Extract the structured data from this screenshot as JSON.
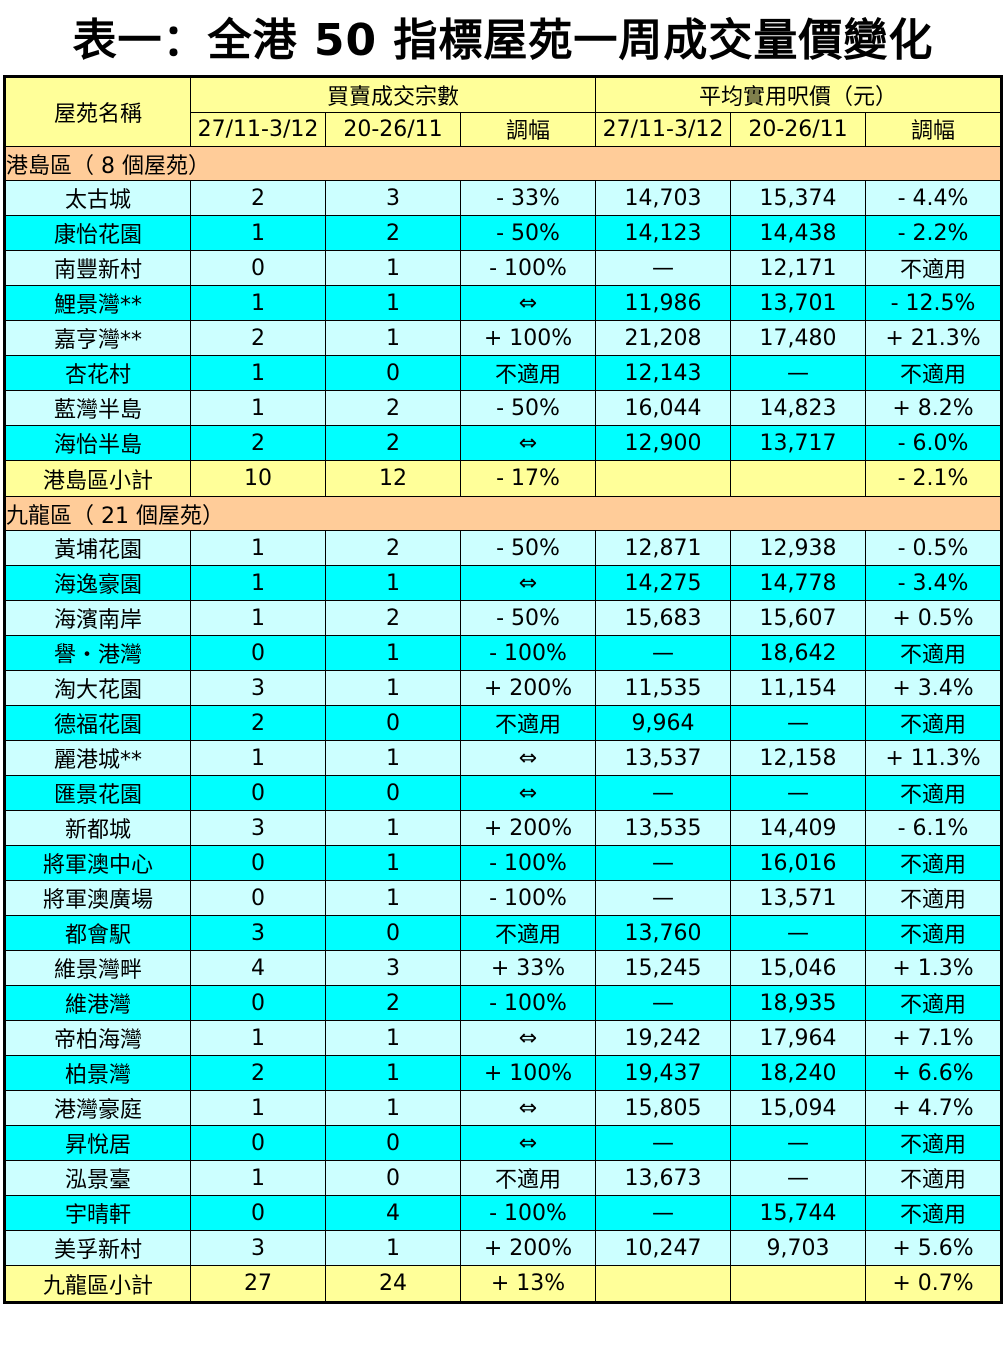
{
  "title": "表一：全港 50 指標屋苑一周成交量價變化",
  "header": {
    "name_col": "屋苑名稱",
    "group_volume": "買賣成交宗數",
    "group_price": "平均實用呎價（元）",
    "sub": [
      "27/11-3/12",
      "20-26/11",
      "調幅",
      "27/11-3/12",
      "20-26/11",
      "調幅"
    ]
  },
  "sections": [
    {
      "region": "港島區（ 8 個屋苑）",
      "rows": [
        {
          "name": "太古城",
          "v1": "2",
          "v2": "3",
          "vc": "- 33%",
          "p1": "14,703",
          "p2": "15,374",
          "pc": "- 4.4%"
        },
        {
          "name": "康怡花園",
          "v1": "1",
          "v2": "2",
          "vc": "- 50%",
          "p1": "14,123",
          "p2": "14,438",
          "pc": "- 2.2%"
        },
        {
          "name": "南豐新村",
          "v1": "0",
          "v2": "1",
          "vc": "- 100%",
          "p1": "—",
          "p2": "12,171",
          "pc": "不適用"
        },
        {
          "name": "鯉景灣**",
          "v1": "1",
          "v2": "1",
          "vc": "⇔",
          "p1": "11,986",
          "p2": "13,701",
          "pc": "- 12.5%"
        },
        {
          "name": "嘉亨灣**",
          "v1": "2",
          "v2": "1",
          "vc": "+ 100%",
          "p1": "21,208",
          "p2": "17,480",
          "pc": "+ 21.3%"
        },
        {
          "name": "杏花村",
          "v1": "1",
          "v2": "0",
          "vc": "不適用",
          "p1": "12,143",
          "p2": "—",
          "pc": "不適用"
        },
        {
          "name": "藍灣半島",
          "v1": "1",
          "v2": "2",
          "vc": "- 50%",
          "p1": "16,044",
          "p2": "14,823",
          "pc": "+ 8.2%"
        },
        {
          "name": "海怡半島",
          "v1": "2",
          "v2": "2",
          "vc": "⇔",
          "p1": "12,900",
          "p2": "13,717",
          "pc": "- 6.0%"
        }
      ],
      "subtotal": {
        "name": "港島區小計",
        "v1": "10",
        "v2": "12",
        "vc": "- 17%",
        "p1": "",
        "p2": "",
        "pc": "- 2.1%"
      }
    },
    {
      "region": "九龍區（ 21 個屋苑）",
      "rows": [
        {
          "name": "黃埔花園",
          "v1": "1",
          "v2": "2",
          "vc": "- 50%",
          "p1": "12,871",
          "p2": "12,938",
          "pc": "- 0.5%"
        },
        {
          "name": "海逸豪園",
          "v1": "1",
          "v2": "1",
          "vc": "⇔",
          "p1": "14,275",
          "p2": "14,778",
          "pc": "- 3.4%"
        },
        {
          "name": "海濱南岸",
          "v1": "1",
          "v2": "2",
          "vc": "- 50%",
          "p1": "15,683",
          "p2": "15,607",
          "pc": "+ 0.5%"
        },
        {
          "name": "譽・港灣",
          "v1": "0",
          "v2": "1",
          "vc": "- 100%",
          "p1": "—",
          "p2": "18,642",
          "pc": "不適用"
        },
        {
          "name": "淘大花園",
          "v1": "3",
          "v2": "1",
          "vc": "+ 200%",
          "p1": "11,535",
          "p2": "11,154",
          "pc": "+ 3.4%"
        },
        {
          "name": "德福花園",
          "v1": "2",
          "v2": "0",
          "vc": "不適用",
          "p1": "9,964",
          "p2": "—",
          "pc": "不適用"
        },
        {
          "name": "麗港城**",
          "v1": "1",
          "v2": "1",
          "vc": "⇔",
          "p1": "13,537",
          "p2": "12,158",
          "pc": "+ 11.3%"
        },
        {
          "name": "匯景花園",
          "v1": "0",
          "v2": "0",
          "vc": "⇔",
          "p1": "—",
          "p2": "—",
          "pc": "不適用"
        },
        {
          "name": "新都城",
          "v1": "3",
          "v2": "1",
          "vc": "+ 200%",
          "p1": "13,535",
          "p2": "14,409",
          "pc": "- 6.1%"
        },
        {
          "name": "將軍澳中心",
          "v1": "0",
          "v2": "1",
          "vc": "- 100%",
          "p1": "—",
          "p2": "16,016",
          "pc": "不適用"
        },
        {
          "name": "將軍澳廣場",
          "v1": "0",
          "v2": "1",
          "vc": "- 100%",
          "p1": "—",
          "p2": "13,571",
          "pc": "不適用"
        },
        {
          "name": "都會駅",
          "v1": "3",
          "v2": "0",
          "vc": "不適用",
          "p1": "13,760",
          "p2": "—",
          "pc": "不適用"
        },
        {
          "name": "維景灣畔",
          "v1": "4",
          "v2": "3",
          "vc": "+ 33%",
          "p1": "15,245",
          "p2": "15,046",
          "pc": "+ 1.3%"
        },
        {
          "name": "維港灣",
          "v1": "0",
          "v2": "2",
          "vc": "- 100%",
          "p1": "—",
          "p2": "18,935",
          "pc": "不適用"
        },
        {
          "name": "帝柏海灣",
          "v1": "1",
          "v2": "1",
          "vc": "⇔",
          "p1": "19,242",
          "p2": "17,964",
          "pc": "+ 7.1%"
        },
        {
          "name": "柏景灣",
          "v1": "2",
          "v2": "1",
          "vc": "+ 100%",
          "p1": "19,437",
          "p2": "18,240",
          "pc": "+ 6.6%"
        },
        {
          "name": "港灣豪庭",
          "v1": "1",
          "v2": "1",
          "vc": "⇔",
          "p1": "15,805",
          "p2": "15,094",
          "pc": "+ 4.7%"
        },
        {
          "name": "昇悅居",
          "v1": "0",
          "v2": "0",
          "vc": "⇔",
          "p1": "—",
          "p2": "—",
          "pc": "不適用"
        },
        {
          "name": "泓景臺",
          "v1": "1",
          "v2": "0",
          "vc": "不適用",
          "p1": "13,673",
          "p2": "—",
          "pc": "不適用"
        },
        {
          "name": "宇晴軒",
          "v1": "0",
          "v2": "4",
          "vc": "- 100%",
          "p1": "—",
          "p2": "15,744",
          "pc": "不適用"
        },
        {
          "name": "美孚新村",
          "v1": "3",
          "v2": "1",
          "vc": "+ 200%",
          "p1": "10,247",
          "p2": "9,703",
          "pc": "+ 5.6%"
        }
      ],
      "subtotal": {
        "name": "九龍區小計",
        "v1": "27",
        "v2": "24",
        "vc": "+ 13%",
        "p1": "",
        "p2": "",
        "pc": "+ 0.7%"
      }
    }
  ],
  "colors": {
    "header": "#FFFF99",
    "region": "#FFCC99",
    "row_light": "#CCFFFF",
    "row_cyan": "#00FFFF"
  }
}
